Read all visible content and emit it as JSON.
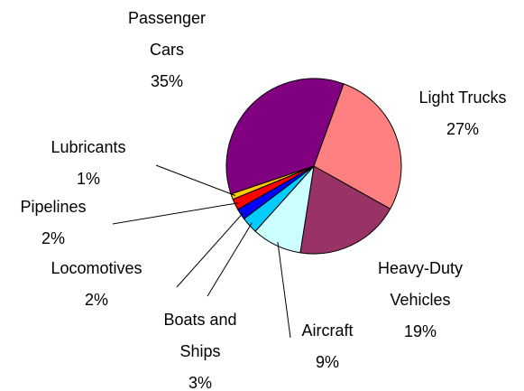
{
  "chart_data": {
    "type": "pie",
    "categories": [
      "Passenger Cars",
      "Light Trucks",
      "Heavy-Duty Vehicles",
      "Aircraft",
      "Boats and Ships",
      "Locomotives",
      "Pipelines",
      "Lubricants"
    ],
    "values": [
      35,
      27,
      19,
      9,
      3,
      2,
      2,
      1
    ],
    "value_labels": [
      "35%",
      "27%",
      "19%",
      "9%",
      "3%",
      "2%",
      "2%",
      "1%"
    ],
    "colors": [
      "#800080",
      "#ff8080",
      "#993366",
      "#ccffff",
      "#00ccff",
      "#0000ff",
      "#ff0000",
      "#ffcc00"
    ]
  }
}
